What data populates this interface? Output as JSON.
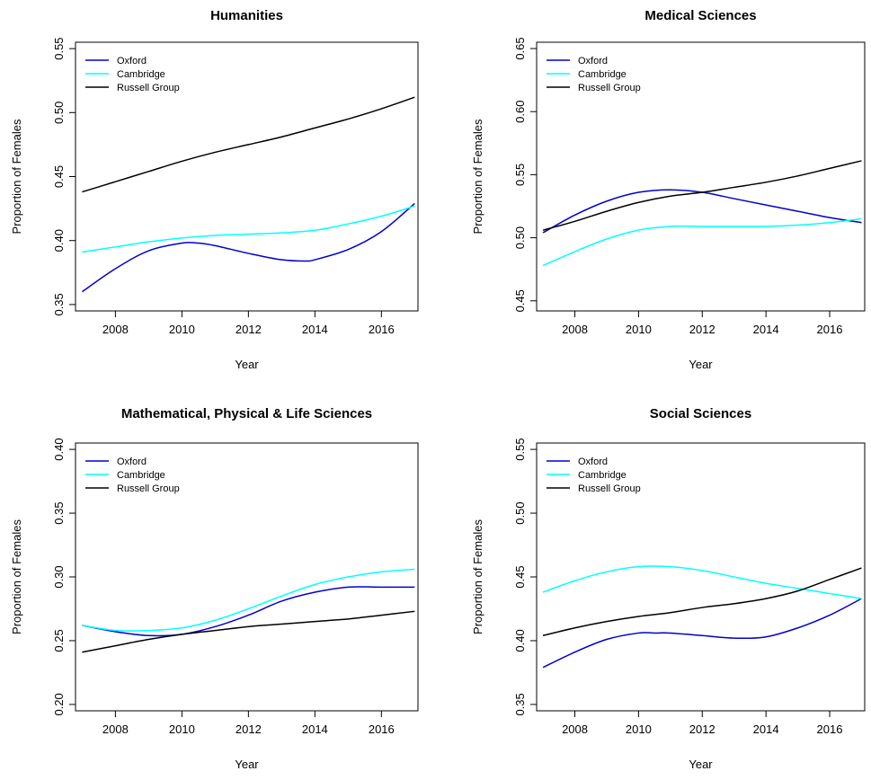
{
  "chart_data": [
    {
      "type": "line",
      "title": "Humanities",
      "xlabel": "Year",
      "ylabel": "Proportion of Females",
      "xlim": [
        2006.8,
        2017.1
      ],
      "ylim": [
        0.345,
        0.555
      ],
      "xticks": [
        2008,
        2010,
        2012,
        2014,
        2016
      ],
      "yticks": [
        0.35,
        0.4,
        0.45,
        0.5,
        0.55
      ],
      "xtick_labels": [
        "2008",
        "2010",
        "2012",
        "2014",
        "2016"
      ],
      "ytick_labels": [
        "0.35",
        "0.40",
        "0.45",
        "0.50",
        "0.55"
      ],
      "legend_position": "top-left",
      "legend": [
        "Oxford",
        "Cambridge",
        "Russell Group"
      ],
      "series": [
        {
          "name": "Oxford",
          "color": "#0000CD",
          "x": [
            2007,
            2008,
            2009,
            2010,
            2010.5,
            2011,
            2012,
            2013,
            2013.7,
            2014,
            2015,
            2016,
            2017
          ],
          "y": [
            0.36,
            0.378,
            0.392,
            0.398,
            0.398,
            0.396,
            0.39,
            0.385,
            0.384,
            0.385,
            0.393,
            0.407,
            0.429
          ]
        },
        {
          "name": "Cambridge",
          "color": "#00FFFF",
          "x": [
            2007,
            2008,
            2009,
            2010,
            2011,
            2012,
            2013,
            2014,
            2015,
            2016,
            2017
          ],
          "y": [
            0.391,
            0.395,
            0.399,
            0.402,
            0.404,
            0.405,
            0.406,
            0.408,
            0.413,
            0.419,
            0.427
          ]
        },
        {
          "name": "Russell Group",
          "color": "#000000",
          "x": [
            2007,
            2008,
            2009,
            2010,
            2011,
            2012,
            2013,
            2014,
            2015,
            2016,
            2017
          ],
          "y": [
            0.438,
            0.446,
            0.454,
            0.462,
            0.469,
            0.475,
            0.481,
            0.488,
            0.495,
            0.503,
            0.512
          ]
        }
      ]
    },
    {
      "type": "line",
      "title": "Medical Sciences",
      "xlabel": "Year",
      "ylabel": "Proportion of Females",
      "xlim": [
        2006.8,
        2017.1
      ],
      "ylim": [
        0.442,
        0.655
      ],
      "xticks": [
        2008,
        2010,
        2012,
        2014,
        2016
      ],
      "yticks": [
        0.45,
        0.5,
        0.55,
        0.6,
        0.65
      ],
      "xtick_labels": [
        "2008",
        "2010",
        "2012",
        "2014",
        "2016"
      ],
      "ytick_labels": [
        "0.45",
        "0.50",
        "0.55",
        "0.60",
        "0.65"
      ],
      "legend_position": "top-left",
      "legend": [
        "Oxford",
        "Cambridge",
        "Russell Group"
      ],
      "series": [
        {
          "name": "Oxford",
          "color": "#0000CD",
          "x": [
            2007,
            2008,
            2009,
            2010,
            2011,
            2012,
            2013,
            2014,
            2015,
            2016,
            2017
          ],
          "y": [
            0.504,
            0.518,
            0.529,
            0.536,
            0.538,
            0.536,
            0.531,
            0.526,
            0.521,
            0.516,
            0.512
          ]
        },
        {
          "name": "Cambridge",
          "color": "#00FFFF",
          "x": [
            2007,
            2008,
            2009,
            2010,
            2011,
            2012,
            2013,
            2014,
            2015,
            2016,
            2017
          ],
          "y": [
            0.478,
            0.489,
            0.499,
            0.506,
            0.509,
            0.509,
            0.509,
            0.509,
            0.51,
            0.512,
            0.515
          ]
        },
        {
          "name": "Russell Group",
          "color": "#000000",
          "x": [
            2007,
            2008,
            2009,
            2010,
            2011,
            2012,
            2013,
            2014,
            2015,
            2016,
            2017
          ],
          "y": [
            0.506,
            0.513,
            0.521,
            0.528,
            0.533,
            0.536,
            0.54,
            0.544,
            0.549,
            0.555,
            0.561
          ]
        }
      ]
    },
    {
      "type": "line",
      "title": "Mathematical, Physical & Life Sciences",
      "xlabel": "Year",
      "ylabel": "Proportion of Females",
      "xlim": [
        2006.8,
        2017.1
      ],
      "ylim": [
        0.195,
        0.405
      ],
      "xticks": [
        2008,
        2010,
        2012,
        2014,
        2016
      ],
      "yticks": [
        0.2,
        0.25,
        0.3,
        0.35,
        0.4
      ],
      "xtick_labels": [
        "2008",
        "2010",
        "2012",
        "2014",
        "2016"
      ],
      "ytick_labels": [
        "0.20",
        "0.25",
        "0.30",
        "0.35",
        "0.40"
      ],
      "legend_position": "top-left",
      "legend": [
        "Oxford",
        "Cambridge",
        "Russell Group"
      ],
      "series": [
        {
          "name": "Oxford",
          "color": "#0000CD",
          "x": [
            2007,
            2008,
            2009,
            2010,
            2011,
            2012,
            2013,
            2014,
            2015,
            2016,
            2017
          ],
          "y": [
            0.262,
            0.257,
            0.254,
            0.255,
            0.261,
            0.27,
            0.281,
            0.288,
            0.292,
            0.292,
            0.292
          ]
        },
        {
          "name": "Cambridge",
          "color": "#00FFFF",
          "x": [
            2007,
            2008,
            2009,
            2010,
            2011,
            2012,
            2013,
            2014,
            2015,
            2016,
            2017
          ],
          "y": [
            0.262,
            0.258,
            0.258,
            0.26,
            0.266,
            0.275,
            0.285,
            0.294,
            0.3,
            0.304,
            0.306
          ]
        },
        {
          "name": "Russell Group",
          "color": "#000000",
          "x": [
            2007,
            2008,
            2009,
            2010,
            2011,
            2012,
            2013,
            2014,
            2015,
            2016,
            2017
          ],
          "y": [
            0.241,
            0.246,
            0.251,
            0.255,
            0.258,
            0.261,
            0.263,
            0.265,
            0.267,
            0.27,
            0.273
          ]
        }
      ]
    },
    {
      "type": "line",
      "title": "Social Sciences",
      "xlabel": "Year",
      "ylabel": "Proportion of Females",
      "xlim": [
        2006.8,
        2017.1
      ],
      "ylim": [
        0.345,
        0.555
      ],
      "xticks": [
        2008,
        2010,
        2012,
        2014,
        2016
      ],
      "yticks": [
        0.35,
        0.4,
        0.45,
        0.5,
        0.55
      ],
      "xtick_labels": [
        "2008",
        "2010",
        "2012",
        "2014",
        "2016"
      ],
      "ytick_labels": [
        "0.35",
        "0.40",
        "0.45",
        "0.50",
        "0.55"
      ],
      "legend_position": "top-left",
      "legend": [
        "Oxford",
        "Cambridge",
        "Russell Group"
      ],
      "series": [
        {
          "name": "Oxford",
          "color": "#0000CD",
          "x": [
            2007,
            2008,
            2009,
            2010,
            2010.5,
            2011,
            2012,
            2013,
            2014,
            2015,
            2016,
            2017
          ],
          "y": [
            0.379,
            0.391,
            0.401,
            0.406,
            0.406,
            0.406,
            0.404,
            0.402,
            0.403,
            0.41,
            0.42,
            0.433
          ]
        },
        {
          "name": "Cambridge",
          "color": "#00FFFF",
          "x": [
            2007,
            2008,
            2009,
            2010,
            2011,
            2012,
            2013,
            2014,
            2015,
            2016,
            2017
          ],
          "y": [
            0.438,
            0.447,
            0.454,
            0.458,
            0.458,
            0.455,
            0.45,
            0.445,
            0.441,
            0.437,
            0.433
          ]
        },
        {
          "name": "Russell Group",
          "color": "#000000",
          "x": [
            2007,
            2008,
            2009,
            2010,
            2011,
            2012,
            2013,
            2014,
            2015,
            2016,
            2017
          ],
          "y": [
            0.404,
            0.41,
            0.415,
            0.419,
            0.422,
            0.426,
            0.429,
            0.433,
            0.439,
            0.448,
            0.457
          ]
        }
      ]
    }
  ]
}
